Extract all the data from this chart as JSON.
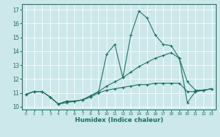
{
  "xlabel": "Humidex (Indice chaleur)",
  "xlim": [
    -0.5,
    23.5
  ],
  "ylim": [
    9.8,
    17.4
  ],
  "yticks": [
    10,
    11,
    12,
    13,
    14,
    15,
    16,
    17
  ],
  "xticks": [
    0,
    1,
    2,
    3,
    4,
    5,
    6,
    7,
    8,
    9,
    10,
    11,
    12,
    13,
    14,
    15,
    16,
    17,
    18,
    19,
    20,
    21,
    22,
    23
  ],
  "bg_color": "#cce8eb",
  "line_color": "#1a6b60",
  "grid_color": "#ffffff",
  "series": [
    {
      "x": [
        0,
        1,
        2,
        3,
        4,
        5,
        6,
        7,
        8,
        9,
        10,
        11,
        12,
        13,
        14,
        15,
        16,
        17,
        18,
        19,
        20,
        21,
        22,
        23
      ],
      "y": [
        10.9,
        11.1,
        11.1,
        10.7,
        10.2,
        10.4,
        10.4,
        10.5,
        10.8,
        11.1,
        13.8,
        14.5,
        12.1,
        15.2,
        16.9,
        16.4,
        15.2,
        14.5,
        14.4,
        13.5,
        10.3,
        11.1,
        11.2,
        11.3
      ]
    },
    {
      "x": [
        0,
        1,
        2,
        3,
        4,
        5,
        6,
        7,
        8,
        9,
        10,
        11,
        12,
        13,
        14,
        15,
        16,
        17,
        18,
        19,
        20,
        21,
        22,
        23
      ],
      "y": [
        10.9,
        11.1,
        11.1,
        10.7,
        10.2,
        10.4,
        10.4,
        10.5,
        10.8,
        11.1,
        11.5,
        11.8,
        12.1,
        12.5,
        12.9,
        13.2,
        13.5,
        13.7,
        13.9,
        13.5,
        11.8,
        11.2,
        11.2,
        11.3
      ]
    },
    {
      "x": [
        0,
        1,
        2,
        3,
        4,
        5,
        6,
        7,
        8,
        9,
        10,
        11,
        12,
        13,
        14,
        15,
        16,
        17,
        18,
        19,
        20,
        21,
        22,
        23
      ],
      "y": [
        10.9,
        11.1,
        11.1,
        10.7,
        10.2,
        10.3,
        10.4,
        10.5,
        10.7,
        11.0,
        11.2,
        11.3,
        11.4,
        11.5,
        11.6,
        11.6,
        11.7,
        11.7,
        11.7,
        11.7,
        11.1,
        11.1,
        11.2,
        11.3
      ]
    }
  ]
}
